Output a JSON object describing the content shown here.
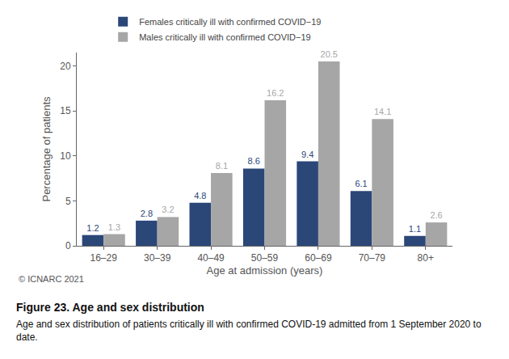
{
  "chart_data": {
    "type": "bar",
    "title": "Figure 23. Age and sex distribution",
    "subtitle": "Age and sex distribution of patients critically ill with confirmed COVID-19 admitted from 1 September 2020 to date.",
    "x_label": "Age at admission (years)",
    "y_label": "Percentage of patients",
    "annotations": [
      "© ICNARC 2021"
    ],
    "categories": [
      "16–29",
      "30–39",
      "40–49",
      "50–59",
      "60–69",
      "70–79",
      "80+"
    ],
    "series": [
      {
        "name": "Females critically ill with confirmed COVID−19",
        "color": "#2b4778",
        "values": [
          1.2,
          2.8,
          4.8,
          8.6,
          9.4,
          6.1,
          1.1
        ]
      },
      {
        "name": "Males critically ill with confirmed COVID−19",
        "color": "#a6a6a6",
        "values": [
          1.3,
          3.2,
          8.1,
          16.2,
          20.5,
          14.1,
          2.6
        ]
      }
    ],
    "ylim": [
      0,
      21.5
    ],
    "yticks": [
      0,
      5,
      10,
      15,
      20
    ],
    "grid": false,
    "legend": "top",
    "data_labels": true
  }
}
